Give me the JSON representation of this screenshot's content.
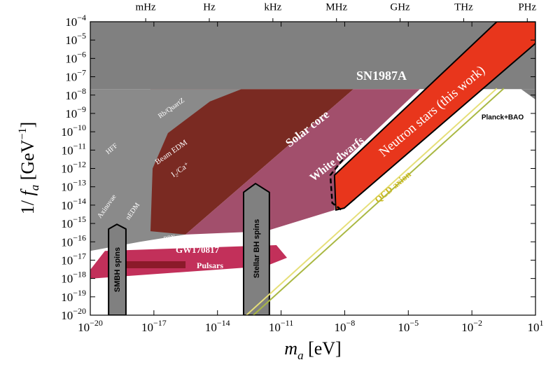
{
  "chart_data": {
    "type": "region",
    "xlabel": "ma [eV]",
    "ylabel": "1/ fa [GeV−1]",
    "xscale": "log",
    "yscale": "log",
    "xlim": [
      1e-20,
      10
    ],
    "ylim": [
      1e-20,
      0.0001
    ],
    "xticks": [
      {
        "value": 1e-20,
        "label": "10−20"
      },
      {
        "value": 1e-17,
        "label": "10−17"
      },
      {
        "value": 1e-14,
        "label": "10−14"
      },
      {
        "value": 1e-11,
        "label": "10−11"
      },
      {
        "value": 1e-08,
        "label": "10−8"
      },
      {
        "value": 1e-05,
        "label": "10−5"
      },
      {
        "value": 0.01,
        "label": "10−2"
      },
      {
        "value": 10,
        "label": "101"
      }
    ],
    "x2ticks": [
      {
        "value": 4.1e-18,
        "label": "mHz"
      },
      {
        "value": 4.1e-15,
        "label": "Hz"
      },
      {
        "value": 4.1e-12,
        "label": "kHz"
      },
      {
        "value": 4.1e-09,
        "label": "MHz"
      },
      {
        "value": 4.1e-06,
        "label": "GHz"
      },
      {
        "value": 0.0041,
        "label": "THz"
      },
      {
        "value": 4.1,
        "label": "PHz"
      }
    ],
    "yticks": [
      {
        "value": 0.0001,
        "label": "10−4"
      },
      {
        "value": 1e-05,
        "label": "10−5"
      },
      {
        "value": 1e-06,
        "label": "10−6"
      },
      {
        "value": 1e-07,
        "label": "10−7"
      },
      {
        "value": 1e-08,
        "label": "10−8"
      },
      {
        "value": 1e-09,
        "label": "10−9"
      },
      {
        "value": 1e-10,
        "label": "10−10"
      },
      {
        "value": 1e-11,
        "label": "10−11"
      },
      {
        "value": 1e-12,
        "label": "10−12"
      },
      {
        "value": 1e-13,
        "label": "10−13"
      },
      {
        "value": 1e-14,
        "label": "10−14"
      },
      {
        "value": 1e-15,
        "label": "10−15"
      },
      {
        "value": 1e-16,
        "label": "10−16"
      },
      {
        "value": 1e-17,
        "label": "10−17"
      },
      {
        "value": 1e-18,
        "label": "10−18"
      },
      {
        "value": 1e-19,
        "label": "10−19"
      },
      {
        "value": 1e-20,
        "label": "10−20"
      }
    ],
    "regions": [
      {
        "color": "#808080",
        "x": [
          1e-20,
          10,
          10,
          1e-20
        ],
        "y": [
          0.0001,
          0.0001,
          2.1e-08,
          2.1e-08
        ]
      },
      {
        "color": "#7a2a22",
        "x": [
          6.9e-18,
          2.6e-08,
          3.1e-16,
          6.9e-18
        ],
        "y": [
          2.1e-08,
          2.1e-08,
          2.5e-16,
          2.5e-16
        ]
      },
      {
        "color": "#a24f6c",
        "x": [
          2.6e-08,
          3.5e-05,
          3.8e-09,
          3.3e-09,
          1.9e-12,
          3.1e-16
        ],
        "y": [
          2.1e-08,
          2.1e-08,
          1e-12,
          5.4e-15,
          3.8e-16,
          2.5e-16
        ]
      },
      {
        "color": "#8a8a8a",
        "x": [
          1e-20,
          1.35e-13,
          4.4e-15,
          4.6e-17,
          8.7e-18,
          6.9e-18,
          3.1e-16,
          2.2e-18,
          1e-20
        ],
        "y": [
          2.1e-08,
          2.1e-08,
          4.5e-09,
          8.5e-11,
          1e-12,
          3.8e-16,
          2.5e-16,
          1e-16,
          3.2e-17
        ]
      },
      {
        "color": "#c2305a",
        "x": [
          1e-20,
          4.9e-20,
          6e-12,
          1.9e-11,
          1.9e-12,
          1e-20
        ],
        "y": [
          3e-18,
          3.2e-17,
          6.6e-17,
          1.35e-17,
          4.7e-18,
          9.8e-19
        ]
      },
      {
        "color": "#8b1a2a",
        "x": [
          7.3e-20,
          3.1e-16,
          3.1e-16,
          7.3e-20
        ],
        "y": [
          8.7e-18,
          8.7e-18,
          3.6e-18,
          3.6e-18
        ]
      },
      {
        "color": "#808080",
        "edgecolor": "#000000",
        "x": [
          7.3e-20,
          7.3e-20,
          1.8e-19,
          4.8e-19,
          4.8e-19
        ],
        "y": [
          1e-20,
          5e-16,
          9e-16,
          5e-16,
          1e-20
        ]
      },
      {
        "color": "#808080",
        "edgecolor": "#000000",
        "x": [
          1.7e-13,
          1.7e-13,
          6.2e-13,
          2.8e-12,
          2.8e-12
        ],
        "y": [
          1e-20,
          5e-14,
          1.5e-13,
          5e-14,
          1e-20
        ]
      },
      {
        "color": "#808080",
        "x": [
          2.1,
          10,
          10
        ],
        "y": [
          2.1e-08,
          2.1e-08,
          5.7e-09
        ]
      },
      {
        "color": "#e8361c",
        "edgecolor": "#000000",
        "x": [
          3.3e-09,
          0.15,
          10,
          10,
          9.5e-09,
          3.8e-09
        ],
        "y": [
          4.3e-13,
          0.0001,
          0.0001,
          6.6e-06,
          6.9e-15,
          5.4e-15
        ]
      }
    ],
    "lines": [
      {
        "color": "#e6df78",
        "x": [
          2.3e-13,
          0.15
        ],
        "y": [
          1e-20,
          2.3e-08
        ]
      },
      {
        "color": "#a9b842",
        "x": [
          4.9e-13,
          0.32
        ],
        "y": [
          1e-20,
          2.3e-08
        ]
      },
      {
        "color": "#000000",
        "style": "dashed",
        "x": [
          8.1e-09,
          2.1e-09,
          2.6e-09,
          7.1e-09
        ],
        "y": [
          3e-12,
          4.3e-13,
          1.3e-14,
          5.4e-15
        ]
      }
    ],
    "annotations": [
      "SN1987A",
      "Solar core",
      "White dwarfs",
      "Neutron stars (this work)",
      "QCD axion",
      "Planck+BAO",
      "GW170817",
      "Pulsars",
      "SMBH spins",
      "Stellar BH spins",
      "HFF",
      "Rb/QuartZ",
      "Beam EDM",
      "I₂/Ca⁺",
      "Axinovae",
      "nEDM",
      "BBN"
    ]
  }
}
